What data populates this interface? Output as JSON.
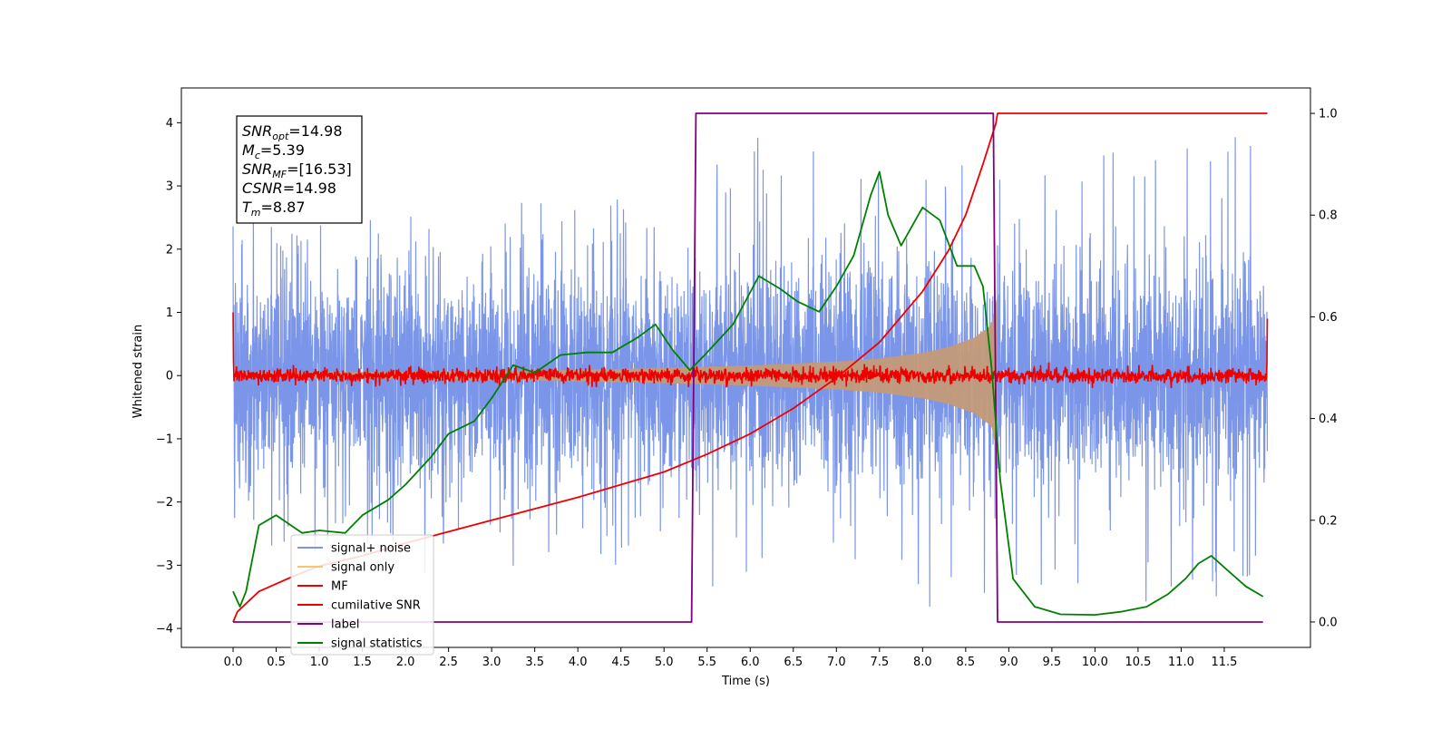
{
  "chart_data": {
    "type": "line",
    "xlabel": "Time (s)",
    "ylabel": "Whitened strain",
    "y2label": "",
    "xlim": [
      -0.6,
      12.5
    ],
    "ylim": [
      -4.3,
      4.55
    ],
    "y2lim": [
      -0.05,
      1.05
    ],
    "x_ticks": [
      0.0,
      0.5,
      1.0,
      1.5,
      2.0,
      2.5,
      3.0,
      3.5,
      4.0,
      4.5,
      5.0,
      5.5,
      6.0,
      6.5,
      7.0,
      7.5,
      8.0,
      8.5,
      9.0,
      9.5,
      10.0,
      10.5,
      11.0,
      11.5
    ],
    "x_tick_labels": [
      "0.0",
      "0.5",
      "1.0",
      "1.5",
      "2.0",
      "2.5",
      "3.0",
      "3.5",
      "4.0",
      "4.5",
      "5.0",
      "5.5",
      "6.0",
      "6.5",
      "7.0",
      "7.5",
      "8.0",
      "8.5",
      "9.0",
      "9.5",
      "10.0",
      "10.5",
      "11.0",
      "11.5"
    ],
    "y_ticks": [
      -4,
      -3,
      -2,
      -1,
      0,
      1,
      2,
      3,
      4
    ],
    "y_tick_labels": [
      "−4",
      "−3",
      "−2",
      "−1",
      "0",
      "1",
      "2",
      "3",
      "4"
    ],
    "y2_ticks": [
      0.0,
      0.2,
      0.4,
      0.6,
      0.8,
      1.0
    ],
    "y2_tick_labels": [
      "0.0",
      "0.2",
      "0.4",
      "0.6",
      "0.8",
      "1.0"
    ],
    "grid": false,
    "legend_position": "lower-left",
    "stats_box": {
      "position": "top-left",
      "lines": [
        {
          "sym": "SNR",
          "sub": "opt",
          "val": "=14.98"
        },
        {
          "sym": "M",
          "sub": "c",
          "val": "=5.39"
        },
        {
          "sym": "SNR",
          "sub": "MF",
          "val": "=[16.53]"
        },
        {
          "sym": "CSNR",
          "sub": "",
          "val": "=14.98"
        },
        {
          "sym": "T",
          "sub": "m",
          "val": "=8.87"
        }
      ]
    },
    "duration_s": 12.0,
    "merger_time_s": 8.87,
    "signal_noise_envelope": {
      "x": [
        0.0,
        1.0,
        2.0,
        3.0,
        4.0,
        5.0,
        5.4,
        6.0,
        7.0,
        8.0,
        8.8,
        9.0,
        10.0,
        11.0,
        12.0
      ],
      "upper": [
        2.7,
        2.4,
        2.5,
        2.7,
        2.8,
        2.9,
        3.9,
        3.8,
        3.6,
        3.5,
        3.4,
        3.0,
        3.7,
        4.1,
        3.7
      ],
      "lower": [
        -2.6,
        -2.8,
        -3.1,
        -3.3,
        -3.2,
        -3.3,
        -3.4,
        -3.3,
        -3.9,
        -3.7,
        -3.5,
        -3.4,
        -3.5,
        -3.7,
        -3.5
      ]
    },
    "signal_only_envelope": {
      "x": [
        0.0,
        2.0,
        4.0,
        5.0,
        6.0,
        7.0,
        7.5,
        8.0,
        8.3,
        8.6,
        8.8,
        8.87
      ],
      "amplitude": [
        0.05,
        0.06,
        0.09,
        0.12,
        0.16,
        0.22,
        0.27,
        0.36,
        0.45,
        0.6,
        0.8,
        1.3
      ]
    },
    "series": [
      {
        "name": "signal+ noise",
        "axis": "left",
        "color": "#7b96e8",
        "noise_std": 0.85,
        "sample_rate_hz": 400
      },
      {
        "name": "signal only",
        "axis": "left",
        "color": "#f7c76d",
        "fill_color": "#c49a78"
      },
      {
        "name": "MF",
        "axis": "left",
        "color": "#ee0000",
        "noise_amplitude": 0.06,
        "edge_values": {
          "start": 1.0,
          "end": 0.9
        }
      },
      {
        "name": "cumilative SNR",
        "axis": "right",
        "color": "#ee0000",
        "x": [
          0.0,
          0.05,
          0.3,
          0.7,
          1.0,
          1.5,
          2.0,
          3.0,
          4.0,
          5.0,
          5.5,
          6.0,
          6.5,
          7.0,
          7.5,
          8.0,
          8.3,
          8.5,
          8.7,
          8.85,
          8.87,
          12.0
        ],
        "y": [
          0.0,
          0.02,
          0.06,
          0.09,
          0.11,
          0.13,
          0.155,
          0.2,
          0.245,
          0.295,
          0.33,
          0.37,
          0.42,
          0.48,
          0.55,
          0.65,
          0.73,
          0.8,
          0.9,
          0.98,
          1.0,
          1.0
        ]
      },
      {
        "name": "label",
        "axis": "right",
        "color": "#800080",
        "x": [
          0.0,
          5.32,
          5.37,
          8.82,
          8.87,
          11.95
        ],
        "y": [
          0.0,
          0.0,
          1.0,
          1.0,
          0.0,
          0.0
        ]
      },
      {
        "name": "signal statistics",
        "axis": "right",
        "color": "#008000",
        "x": [
          0.0,
          0.08,
          0.15,
          0.3,
          0.5,
          0.8,
          1.0,
          1.3,
          1.5,
          1.8,
          2.0,
          2.3,
          2.5,
          2.8,
          3.0,
          3.25,
          3.5,
          3.8,
          4.1,
          4.4,
          4.7,
          4.9,
          5.1,
          5.3,
          5.5,
          5.8,
          6.1,
          6.35,
          6.55,
          6.8,
          7.0,
          7.2,
          7.4,
          7.5,
          7.6,
          7.75,
          8.0,
          8.2,
          8.4,
          8.6,
          8.7,
          8.8,
          8.9,
          9.05,
          9.3,
          9.6,
          10.0,
          10.3,
          10.6,
          10.85,
          11.05,
          11.2,
          11.35,
          11.55,
          11.75,
          11.95
        ],
        "y": [
          0.06,
          0.03,
          0.06,
          0.19,
          0.21,
          0.175,
          0.18,
          0.175,
          0.21,
          0.24,
          0.27,
          0.325,
          0.37,
          0.395,
          0.44,
          0.505,
          0.49,
          0.525,
          0.53,
          0.53,
          0.56,
          0.585,
          0.535,
          0.495,
          0.53,
          0.585,
          0.68,
          0.655,
          0.63,
          0.61,
          0.66,
          0.72,
          0.84,
          0.885,
          0.8,
          0.74,
          0.815,
          0.79,
          0.7,
          0.7,
          0.66,
          0.5,
          0.28,
          0.085,
          0.03,
          0.015,
          0.014,
          0.02,
          0.03,
          0.055,
          0.085,
          0.115,
          0.13,
          0.1,
          0.07,
          0.05
        ]
      }
    ]
  }
}
